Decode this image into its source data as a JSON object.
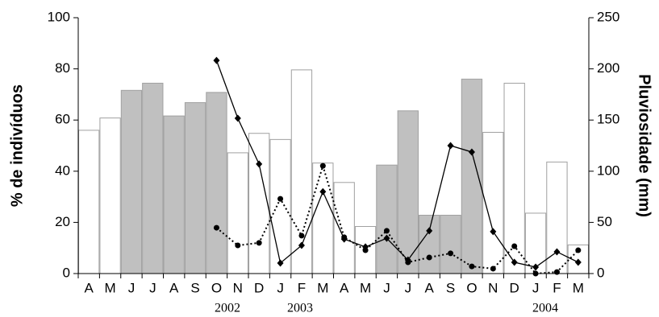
{
  "chart_data": {
    "type": "bar",
    "y_label": "% de indivíduos",
    "y2_label": "Pluviosidade (mm)",
    "categories": [
      "A",
      "M",
      "J",
      "J",
      "A",
      "S",
      "O",
      "N",
      "D",
      "J",
      "F",
      "M",
      "A",
      "M",
      "J",
      "J",
      "A",
      "S",
      "O",
      "N",
      "D",
      "J",
      "F",
      "M"
    ],
    "annotations": [
      "2002",
      "2003",
      "2004"
    ],
    "ylim": [
      0,
      100
    ],
    "yticks": [
      0,
      20,
      40,
      60,
      80,
      100
    ],
    "y2lim": [
      0,
      250
    ],
    "y2ticks": [
      0,
      50,
      100,
      150,
      200,
      250
    ],
    "series": [
      {
        "type": "bar",
        "axis": "y2",
        "colors": [
          "#ffffff",
          "#ffffff",
          "#c0c0c0",
          "#c0c0c0",
          "#c0c0c0",
          "#c0c0c0",
          "#c0c0c0",
          "#ffffff",
          "#ffffff",
          "#ffffff",
          "#ffffff",
          "#ffffff",
          "#ffffff",
          "#ffffff",
          "#c0c0c0",
          "#c0c0c0",
          "#c0c0c0",
          "#c0c0c0",
          "#c0c0c0",
          "#ffffff",
          "#ffffff",
          "#ffffff",
          "#ffffff",
          "#ffffff"
        ],
        "values": [
          140,
          152,
          179,
          186,
          154,
          167,
          177,
          118,
          137,
          131,
          199,
          108,
          89,
          46,
          106,
          159,
          57,
          57,
          190,
          138,
          186,
          59,
          109,
          28
        ]
      },
      {
        "type": "line",
        "axis": "y",
        "color": "#000000",
        "marker": "diamond",
        "dash": "none",
        "values": [
          null,
          null,
          null,
          null,
          null,
          null,
          83.3,
          60.7,
          42.8,
          4.1,
          11,
          32,
          13.5,
          10.4,
          13.8,
          5.3,
          16.7,
          50,
          47.5,
          16.4,
          4.4,
          2.5,
          8.5,
          4.4
        ]
      },
      {
        "type": "line",
        "axis": "y",
        "color": "#000000",
        "marker": "circle",
        "dash": "2,3",
        "values": [
          null,
          null,
          null,
          null,
          null,
          null,
          17.9,
          11,
          12,
          29.2,
          14.8,
          42.1,
          14.2,
          9.1,
          16.7,
          4.4,
          6.3,
          7.9,
          2.8,
          1.9,
          10.7,
          0,
          0.6,
          9.1
        ]
      }
    ]
  }
}
